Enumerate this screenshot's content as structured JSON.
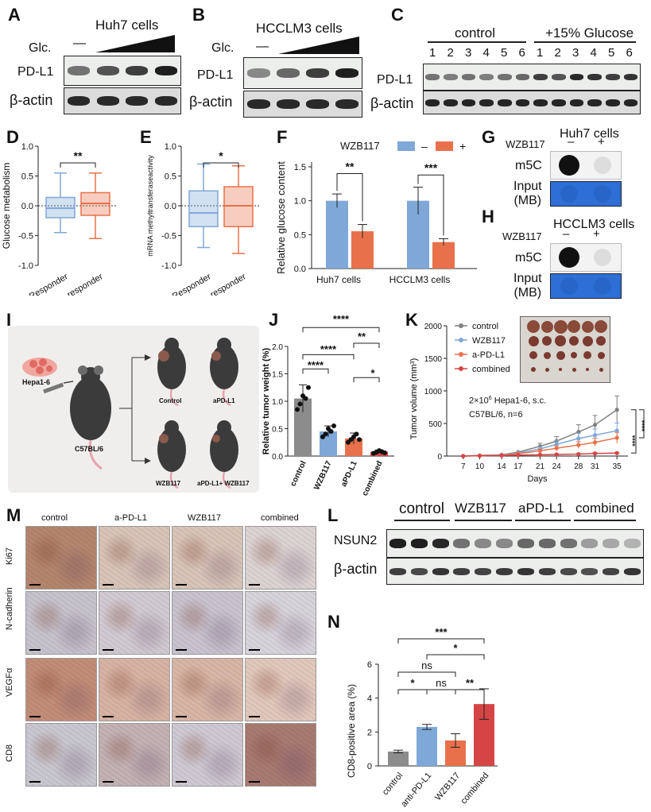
{
  "panel_letters": {
    "A": "A",
    "B": "B",
    "C": "C",
    "D": "D",
    "E": "E",
    "F": "F",
    "G": "G",
    "H": "H",
    "I": "I",
    "J": "J",
    "K": "K",
    "L": "L",
    "M": "M",
    "N": "N"
  },
  "A": {
    "title": "Huh7 cells",
    "glc": "Glc.",
    "minus": "—",
    "row1": "PD-L1",
    "row2": "β-actin",
    "pdl1_intensity": [
      0.55,
      0.7,
      0.8,
      0.95
    ]
  },
  "B": {
    "title": "HCCLM3 cells",
    "glc": "Glc.",
    "minus": "—",
    "row1": "PD-L1",
    "row2": "β-actin",
    "pdl1_intensity": [
      0.45,
      0.6,
      0.8,
      0.95
    ]
  },
  "C": {
    "group1": "control",
    "group2": "+15% Glucose",
    "lanes": [
      "1",
      "2",
      "3",
      "4",
      "5",
      "6",
      "1",
      "2",
      "3",
      "4",
      "5",
      "6"
    ],
    "row1": "PD-L1",
    "row2": "β-actin",
    "pdl1_intensity": [
      0.55,
      0.5,
      0.55,
      0.5,
      0.55,
      0.6,
      0.8,
      0.7,
      0.9,
      0.85,
      0.8,
      0.85
    ]
  },
  "D": {
    "chart_data": {
      "type": "boxplot",
      "ylabel": "Glucose metabolism",
      "ylim": [
        -1.0,
        1.0
      ],
      "yticks": [
        "1.0",
        "0.5",
        "0.0",
        "-0.5",
        "-1.0"
      ],
      "categories": [
        "Responder",
        "Non-responder"
      ],
      "sig": "**",
      "boxes": [
        {
          "min": -0.45,
          "q1": -0.2,
          "median": -0.04,
          "q3": 0.14,
          "max": 0.55,
          "color": "#7fa8d8"
        },
        {
          "min": -0.55,
          "q1": -0.16,
          "median": 0.04,
          "q3": 0.22,
          "max": 0.55,
          "color": "#e8714b"
        }
      ]
    }
  },
  "E": {
    "chart_data": {
      "type": "boxplot",
      "ylabel": "mRNA methyltransferaseactivity",
      "ylim": [
        -1.0,
        1.0
      ],
      "yticks": [
        "1.0",
        "0.5",
        "0.0",
        "-0.5",
        "-1.0"
      ],
      "categories": [
        "Responder",
        "Non-responder"
      ],
      "sig": "*",
      "boxes": [
        {
          "min": -0.7,
          "q1": -0.35,
          "median": -0.12,
          "q3": 0.25,
          "max": 0.7,
          "color": "#7fa8d8"
        },
        {
          "min": -0.8,
          "q1": -0.35,
          "median": 0.0,
          "q3": 0.32,
          "max": 0.67,
          "color": "#e8714b"
        }
      ]
    }
  },
  "F": {
    "legend_title": "WZB117",
    "legend_minus": "–",
    "legend_plus": "+",
    "chart_data": {
      "type": "bar",
      "ylabel": "Relative glucose content",
      "ylim": [
        0,
        1.5
      ],
      "yticks": [
        "1.5",
        "1.0",
        "0.5",
        "0.0"
      ],
      "categories": [
        "Huh7 cells",
        "HCCLM3 cells"
      ],
      "series": [
        {
          "name": "–",
          "values": [
            1.0,
            1.0
          ],
          "err": [
            0.1,
            0.2
          ],
          "color": "#7fa8d8"
        },
        {
          "name": "+",
          "values": [
            0.55,
            0.39
          ],
          "err": [
            0.1,
            0.05
          ],
          "color": "#e8714b"
        }
      ],
      "sig": [
        "**",
        "***"
      ]
    }
  },
  "G": {
    "title": "Huh7 cells",
    "treat": "WZB117",
    "minus": "–",
    "plus": "+",
    "row1": "m5C",
    "row2a": "Input",
    "row2b": "(MB)"
  },
  "H": {
    "title": "HCCLM3 cells",
    "treat": "WZB117",
    "minus": "–",
    "plus": "+",
    "row1": "m5C",
    "row2a": "Input",
    "row2b": "(MB)"
  },
  "I": {
    "cell": "Hepa1-6",
    "mouse": "C57BL/6",
    "groups": [
      "Control",
      "aPD-L1",
      "WZB117",
      "aPD-L1+ WZB117"
    ]
  },
  "J": {
    "chart_data": {
      "type": "bar",
      "ylabel": "Relative tumor weight (%)",
      "ylim": [
        0,
        2.0
      ],
      "yticks": [
        "2.0",
        "1.5",
        "1.0",
        "0.5",
        "0.0"
      ],
      "categories": [
        "control",
        "WZB117",
        "aPD-L1",
        "combined"
      ],
      "values": [
        1.05,
        0.45,
        0.32,
        0.08
      ],
      "err": [
        0.25,
        0.1,
        0.1,
        0.03
      ],
      "colors": [
        "#8c8c8c",
        "#7fa8d8",
        "#e8714b",
        "#d64545"
      ],
      "points": [
        [
          0.85,
          0.95,
          1.1,
          1.05,
          1.25
        ],
        [
          0.35,
          0.4,
          0.5,
          0.45,
          0.55
        ],
        [
          0.25,
          0.3,
          0.35,
          0.4,
          0.3
        ],
        [
          0.05,
          0.07,
          0.1,
          0.08,
          0.06
        ]
      ],
      "sig": [
        "****",
        "**",
        "****",
        "****",
        "*"
      ]
    }
  },
  "K": {
    "note1": "2×10",
    "note1sup": "6",
    "note1b": " Hepa1-6, s.c.",
    "note2": "C57BL/6, n=6",
    "chart_data": {
      "type": "line",
      "xlabel": "Days",
      "ylabel": "Tumor volume (mm",
      "ylabel_sup": "3",
      "ylabel_end": ")",
      "x": [
        7,
        10,
        14,
        17,
        21,
        24,
        28,
        31,
        35
      ],
      "ylim": [
        0,
        2000
      ],
      "yticks": [
        "0",
        "500",
        "1000",
        "1500",
        "2000"
      ],
      "series": [
        {
          "name": "control",
          "color": "#808080",
          "values": [
            0,
            10,
            20,
            60,
            150,
            230,
            370,
            480,
            710
          ]
        },
        {
          "name": "WZB117",
          "color": "#7fa8d8",
          "values": [
            0,
            8,
            18,
            45,
            110,
            180,
            270,
            320,
            390
          ]
        },
        {
          "name": "a-PD-L1",
          "color": "#e8714b",
          "values": [
            0,
            6,
            14,
            35,
            80,
            120,
            170,
            210,
            280
          ]
        },
        {
          "name": "combined",
          "color": "#d64545",
          "values": [
            0,
            4,
            8,
            15,
            20,
            25,
            30,
            40,
            45
          ]
        }
      ],
      "sig": [
        "****",
        "****"
      ]
    }
  },
  "L": {
    "groups": [
      "control",
      "WZB117",
      "aPD-L1",
      "combined"
    ],
    "row1": "NSUN2",
    "row2": "β-actin",
    "nsun2_intensity": [
      0.95,
      0.95,
      0.9,
      0.55,
      0.45,
      0.45,
      0.6,
      0.6,
      0.55,
      0.35,
      0.3,
      0.25
    ]
  },
  "M": {
    "cols": [
      "control",
      "a-PD-L1",
      "WZB117",
      "combined"
    ],
    "rows": [
      "Ki67",
      "N-cadherin",
      "VEGFα",
      "CD8"
    ]
  },
  "N": {
    "chart_data": {
      "type": "bar",
      "ylabel": "CD8-positive area (%)",
      "ylim": [
        0,
        6
      ],
      "yticks": [
        "6",
        "4",
        "2",
        "0"
      ],
      "categories": [
        "control",
        "anti-PD-L1",
        "WZB117",
        "combined"
      ],
      "values": [
        0.85,
        2.3,
        1.5,
        3.65
      ],
      "err": [
        0.08,
        0.15,
        0.4,
        0.9
      ],
      "colors": [
        "#8c8c8c",
        "#7fa8d8",
        "#e8714b",
        "#d64545"
      ],
      "sig": [
        "***",
        "*",
        "ns",
        "ns",
        "*",
        "ns",
        "**"
      ]
    }
  }
}
